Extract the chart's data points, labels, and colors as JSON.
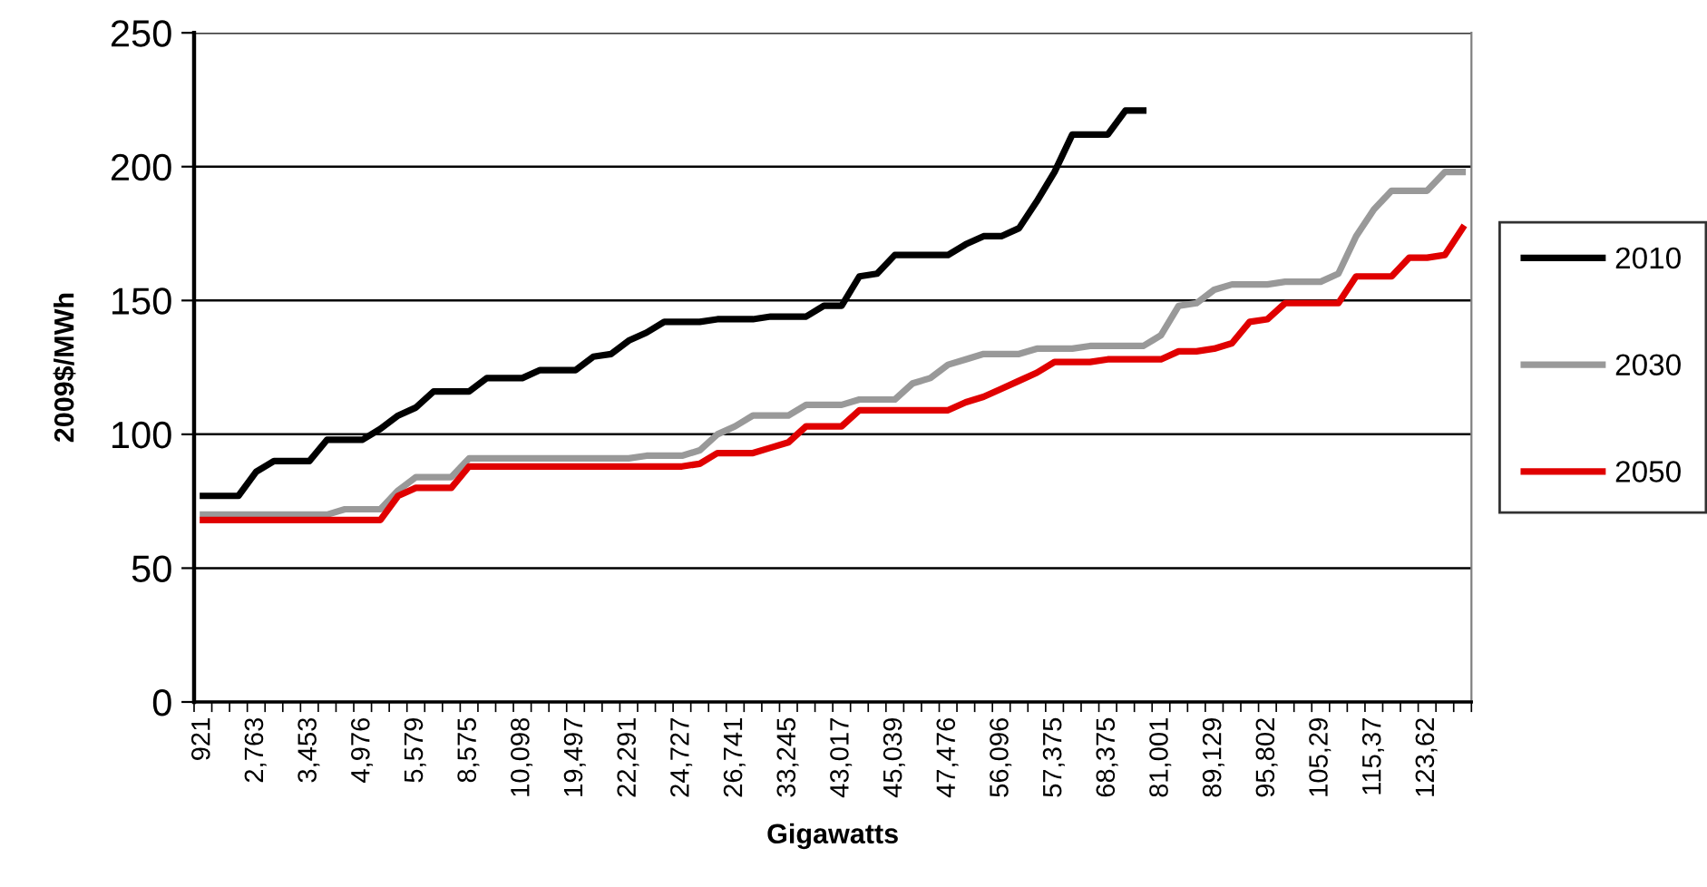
{
  "chart_data": {
    "type": "line",
    "xlabel": "Gigawatts",
    "ylabel": "2009$/MWh",
    "categories": [
      "921",
      null,
      null,
      "2,763",
      null,
      null,
      "3,453",
      null,
      null,
      "4,976",
      null,
      null,
      "5,579",
      null,
      null,
      "8,575",
      null,
      null,
      "10,098",
      null,
      null,
      "19,497",
      null,
      null,
      "22,291",
      null,
      null,
      "24,727",
      null,
      null,
      "26,741",
      null,
      null,
      "33,245",
      null,
      null,
      "43,017",
      null,
      null,
      "45,039",
      null,
      null,
      "47,476",
      null,
      null,
      "56,096",
      null,
      null,
      "57,375",
      null,
      null,
      "68,375",
      null,
      null,
      "81,001",
      null,
      null,
      "89,129",
      null,
      null,
      "95,802",
      null,
      null,
      "105,29",
      null,
      null,
      "115,37",
      null,
      null,
      "123,62",
      null,
      null
    ],
    "series": [
      {
        "name": "2010",
        "color": "#000000",
        "values": [
          77,
          77,
          77,
          86,
          90,
          90,
          90,
          98,
          98,
          98,
          102,
          107,
          110,
          116,
          116,
          116,
          121,
          121,
          121,
          124,
          124,
          124,
          129,
          130,
          135,
          138,
          142,
          142,
          142,
          143,
          143,
          143,
          144,
          144,
          144,
          148,
          148,
          159,
          160,
          167,
          167,
          167,
          167,
          171,
          174,
          174,
          177,
          187,
          198,
          212,
          212,
          212,
          221,
          221,
          null,
          null,
          null,
          null,
          null,
          null,
          null,
          null,
          null,
          null,
          null,
          null,
          null,
          null,
          null,
          null,
          null,
          null
        ]
      },
      {
        "name": "2030",
        "color": "#999999",
        "values": [
          70,
          70,
          70,
          70,
          70,
          70,
          70,
          70,
          72,
          72,
          72,
          79,
          84,
          84,
          84,
          91,
          91,
          91,
          91,
          91,
          91,
          91,
          91,
          91,
          91,
          92,
          92,
          92,
          94,
          100,
          103,
          107,
          107,
          107,
          111,
          111,
          111,
          113,
          113,
          113,
          119,
          121,
          126,
          128,
          130,
          130,
          130,
          132,
          132,
          132,
          133,
          133,
          133,
          133,
          137,
          148,
          149,
          154,
          156,
          156,
          156,
          157,
          157,
          157,
          160,
          174,
          184,
          191,
          191,
          191,
          198,
          198
        ]
      },
      {
        "name": "2050",
        "color": "#e00000",
        "values": [
          68,
          68,
          68,
          68,
          68,
          68,
          68,
          68,
          68,
          68,
          68,
          77,
          80,
          80,
          80,
          88,
          88,
          88,
          88,
          88,
          88,
          88,
          88,
          88,
          88,
          88,
          88,
          88,
          89,
          93,
          93,
          93,
          95,
          97,
          103,
          103,
          103,
          109,
          109,
          109,
          109,
          109,
          109,
          112,
          114,
          117,
          120,
          123,
          127,
          127,
          127,
          128,
          128,
          128,
          128,
          131,
          131,
          132,
          134,
          142,
          143,
          149,
          149,
          149,
          149,
          159,
          159,
          159,
          166,
          166,
          167,
          177
        ]
      }
    ],
    "ylim": [
      0,
      250
    ],
    "yticks": [
      0,
      50,
      100,
      150,
      200,
      250
    ],
    "grid": "y",
    "legend": "right",
    "marker": "none",
    "line_style": "solid"
  }
}
